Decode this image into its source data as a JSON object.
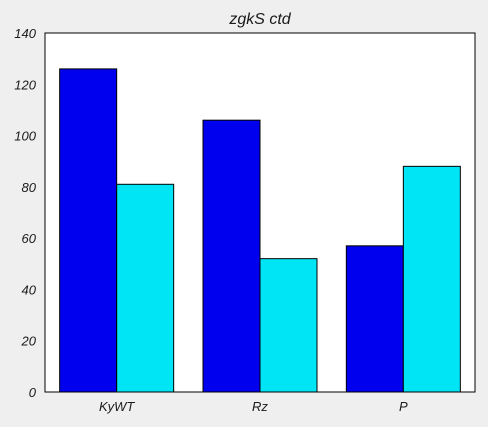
{
  "chart_data": {
    "type": "bar",
    "title": "zgkS  ctd",
    "xlabel": "",
    "ylabel": "",
    "categories": [
      "KyWT",
      "Rz",
      "P"
    ],
    "series": [
      {
        "values": [
          126,
          106,
          57
        ],
        "color": "#0000ee"
      },
      {
        "values": [
          81,
          52,
          88
        ],
        "color": "#00e5f5"
      }
    ],
    "ylim": [
      0,
      140
    ],
    "yticks": [
      0,
      20,
      40,
      60,
      80,
      100,
      120,
      140
    ],
    "grid": false,
    "legend": "none",
    "colors": {
      "background": "#efefef",
      "plot_background": "#ffffff",
      "axis": "#000000"
    }
  }
}
